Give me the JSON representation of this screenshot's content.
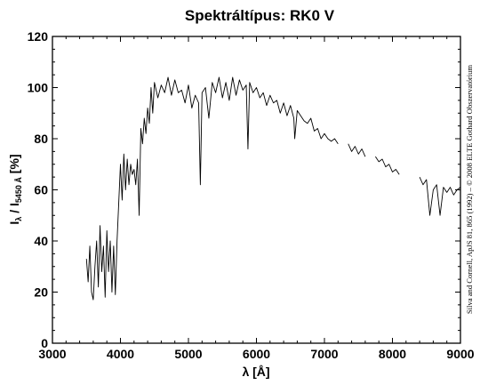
{
  "chart_data": {
    "type": "line",
    "title": "Spektráltípus: RK0 V",
    "xlabel": "λ [Å]",
    "ylabel": {
      "main": "I",
      "sub1": "λ",
      "mid": " / I",
      "sub2": "5450 Å",
      "tail": " [%]"
    },
    "xlim": [
      3000,
      9000
    ],
    "ylim": [
      0,
      120
    ],
    "x_ticks": [
      3000,
      4000,
      5000,
      6000,
      7000,
      8000,
      9000
    ],
    "y_ticks": [
      0,
      20,
      40,
      60,
      80,
      100,
      120
    ],
    "x_tick_labels": [
      "3000",
      "4000",
      "5000",
      "6000",
      "7000",
      "8000",
      "9000"
    ],
    "y_tick_labels": [
      "0",
      "20",
      "40",
      "60",
      "80",
      "100",
      "120"
    ],
    "grid": false,
    "legend": "none",
    "credit": "Silva and Cornell, ApJS 81, 865 (1992) – © 2008 ELTE Gothard Obszervatórium",
    "line_color": "#000000",
    "series": [
      {
        "segments": [
          {
            "x": [
              3500,
              3525,
              3550,
              3575,
              3600,
              3625,
              3650,
              3675,
              3700,
              3725,
              3750,
              3775,
              3800,
              3825,
              3850,
              3875,
              3900,
              3925,
              3950,
              3975,
              4000,
              4025,
              4050,
              4075,
              4100,
              4125,
              4150,
              4175,
              4200,
              4225,
              4250,
              4275,
              4300,
              4325,
              4350,
              4375,
              4400,
              4425,
              4450,
              4475,
              4500,
              4550,
              4600,
              4650,
              4700,
              4750,
              4800,
              4850,
              4900,
              4950,
              5000,
              5050,
              5100,
              5150,
              5175,
              5200,
              5250,
              5300,
              5350,
              5400,
              5450,
              5500,
              5550,
              5600,
              5650,
              5700,
              5750,
              5800,
              5850,
              5875,
              5900,
              5950,
              6000,
              6050,
              6100,
              6150,
              6200,
              6250,
              6300,
              6350,
              6400,
              6450,
              6500,
              6550,
              6563,
              6600,
              6650,
              6700,
              6750,
              6800,
              6850,
              6900,
              6950,
              7000,
              7050,
              7100,
              7150,
              7200
            ],
            "y": [
              33,
              24,
              38,
              20,
              17,
              30,
              40,
              22,
              46,
              28,
              38,
              18,
              44,
              28,
              40,
              20,
              38,
              19,
              40,
              55,
              70,
              56,
              74,
              60,
              72,
              62,
              70,
              66,
              68,
              62,
              72,
              50,
              84,
              78,
              88,
              82,
              92,
              86,
              100,
              90,
              102,
              96,
              101,
              98,
              104,
              97,
              103,
              98,
              99,
              94,
              101,
              92,
              97,
              94,
              62,
              98,
              100,
              88,
              102,
              98,
              104,
              96,
              102,
              95,
              104,
              97,
              103,
              99,
              101,
              76,
              102,
              98,
              100,
              96,
              98,
              93,
              97,
              94,
              95,
              90,
              94,
              89,
              93,
              88,
              80,
              91,
              89,
              87,
              86,
              88,
              83,
              84,
              80,
              82,
              80,
              79,
              80,
              78
            ]
          },
          {
            "x": [
              7350,
              7400,
              7450,
              7500,
              7550,
              7600
            ],
            "y": [
              78,
              75,
              77,
              74,
              76,
              73
            ]
          },
          {
            "x": [
              7750,
              7800,
              7850,
              7900,
              7950,
              8000,
              8050,
              8100
            ],
            "y": [
              73,
              71,
              72,
              69,
              70,
              67,
              68,
              66
            ]
          },
          {
            "x": [
              8400,
              8450,
              8500,
              8550,
              8600,
              8650,
              8700,
              8750,
              8800,
              8850,
              8900,
              8950,
              9000
            ],
            "y": [
              65,
              62,
              64,
              50,
              60,
              62,
              50,
              61,
              59,
              61,
              58,
              60,
              61
            ]
          }
        ]
      }
    ]
  }
}
